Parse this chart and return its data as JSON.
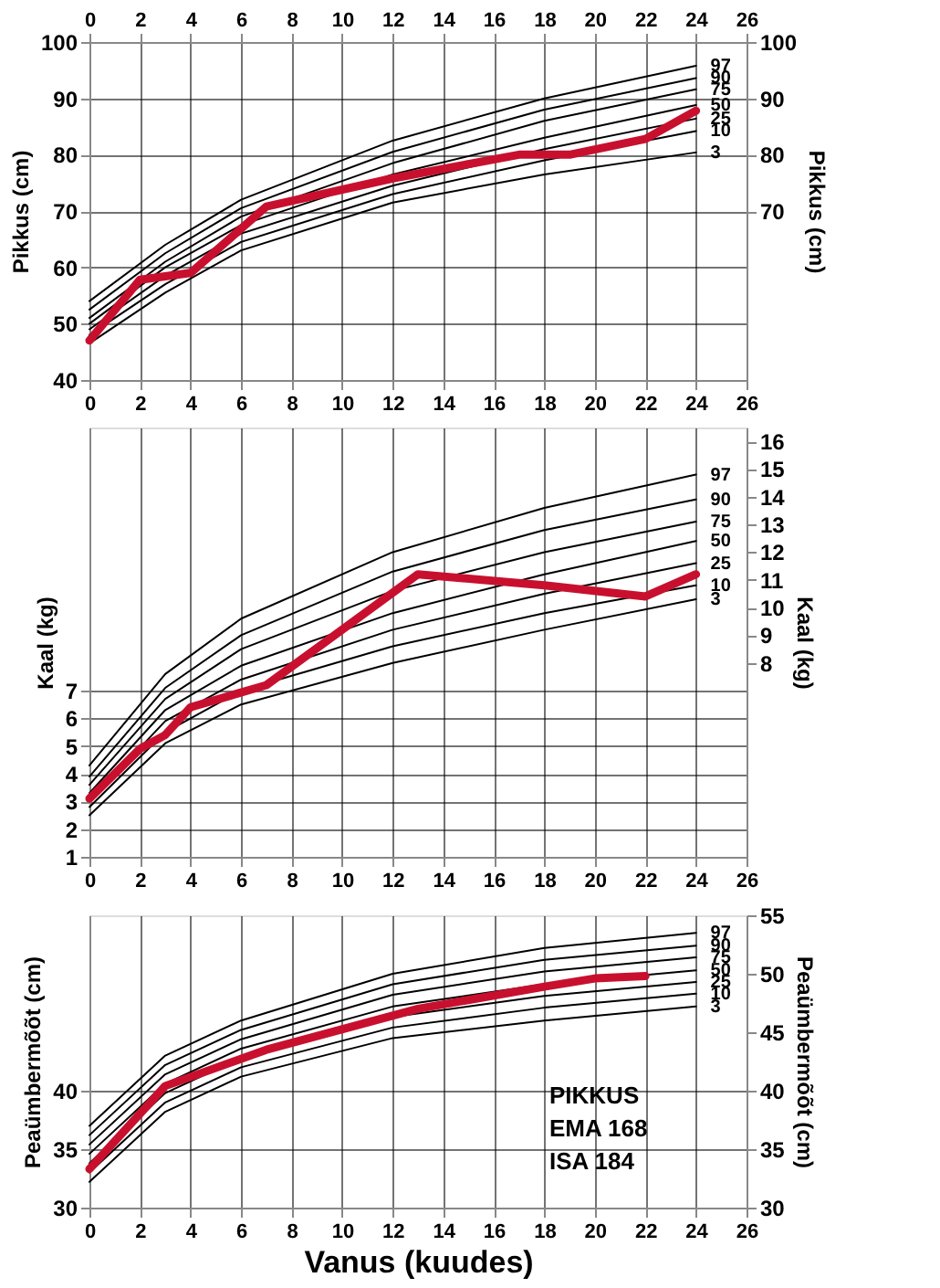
{
  "chart_data": [
    {
      "type": "line",
      "ylabel": "Pikkus (cm)",
      "y2label": "Pikkus (cm)",
      "xlim": [
        0,
        26
      ],
      "xticks": [
        0,
        2,
        4,
        6,
        8,
        10,
        12,
        14,
        16,
        18,
        20,
        22,
        24,
        26
      ],
      "x2lim": [
        0,
        26
      ],
      "x2ticks": [
        0,
        2,
        4,
        6,
        8,
        10,
        12,
        14,
        16,
        18,
        20,
        22,
        24,
        26
      ],
      "ylim": [
        40,
        100
      ],
      "yticks": [
        40,
        50,
        60,
        70,
        80,
        90,
        100
      ],
      "y2lim": [
        40,
        100
      ],
      "y2ticks": [
        70,
        80,
        90,
        100
      ],
      "grid": true,
      "marker": "none",
      "line_style": "solid",
      "x": [
        0,
        3,
        6,
        12,
        18,
        24
      ],
      "series": [
        {
          "name": "97",
          "color": "#000000",
          "values": [
            54,
            64,
            72,
            82.5,
            90,
            95.8
          ]
        },
        {
          "name": "90",
          "color": "#000000",
          "values": [
            52.5,
            62.5,
            70.5,
            80.5,
            88,
            93.6
          ]
        },
        {
          "name": "75",
          "color": "#000000",
          "values": [
            51,
            61,
            69,
            78.5,
            86,
            91.6
          ]
        },
        {
          "name": "50",
          "color": "#000000",
          "values": [
            50,
            60,
            67.5,
            76.5,
            83,
            88.8
          ]
        },
        {
          "name": "25",
          "color": "#000000",
          "values": [
            49,
            58.5,
            66,
            74.5,
            81,
            86.4
          ]
        },
        {
          "name": "10",
          "color": "#000000",
          "values": [
            48,
            57,
            64.5,
            73,
            79,
            84.2
          ]
        },
        {
          "name": "3",
          "color": "#000000",
          "values": [
            46.5,
            55.5,
            63,
            71.5,
            76.5,
            80.4
          ]
        },
        {
          "color": "#c8102e",
          "x": [
            0,
            2,
            4,
            7,
            12,
            17,
            19,
            22,
            24
          ],
          "values": [
            47,
            57.8,
            59,
            70.8,
            75.8,
            80,
            80,
            82.8,
            87.8
          ]
        }
      ]
    },
    {
      "type": "line",
      "ylabel": "Kaal (kg)",
      "y2label": "Kaal (kg)",
      "xlim": [
        0,
        26
      ],
      "xticks": [
        0,
        2,
        4,
        6,
        8,
        10,
        12,
        14,
        16,
        18,
        20,
        22,
        24,
        26
      ],
      "ylim": [
        1,
        16.5
      ],
      "yticks": [
        1,
        2,
        3,
        4,
        5,
        6,
        7
      ],
      "y2lim": [
        1,
        16.5
      ],
      "y2ticks": [
        8,
        9,
        10,
        11,
        12,
        13,
        14,
        15,
        16
      ],
      "grid": true,
      "marker": "none",
      "line_style": "solid",
      "x": [
        0,
        3,
        6,
        12,
        18,
        24
      ],
      "series": [
        {
          "name": "97",
          "color": "#000000",
          "values": [
            4.3,
            7.6,
            9.6,
            12.0,
            13.6,
            14.8
          ]
        },
        {
          "name": "90",
          "color": "#000000",
          "values": [
            3.9,
            7.1,
            9.0,
            11.3,
            12.8,
            13.9
          ]
        },
        {
          "name": "75",
          "color": "#000000",
          "values": [
            3.6,
            6.7,
            8.5,
            10.6,
            12.0,
            13.1
          ]
        },
        {
          "name": "50",
          "color": "#000000",
          "values": [
            3.3,
            6.3,
            7.9,
            9.8,
            11.2,
            12.4
          ]
        },
        {
          "name": "25",
          "color": "#000000",
          "values": [
            3.0,
            5.9,
            7.4,
            9.2,
            10.5,
            11.6
          ]
        },
        {
          "name": "10",
          "color": "#000000",
          "values": [
            2.8,
            5.5,
            7.0,
            8.6,
            9.8,
            10.8
          ]
        },
        {
          "name": "3",
          "color": "#000000",
          "values": [
            2.5,
            5.1,
            6.5,
            8.0,
            9.2,
            10.3
          ]
        },
        {
          "color": "#c8102e",
          "x": [
            0,
            2,
            3,
            4,
            7,
            13,
            18,
            22,
            24
          ],
          "values": [
            3.1,
            4.9,
            5.4,
            6.4,
            7.2,
            11.2,
            10.8,
            10.4,
            11.2
          ]
        }
      ]
    },
    {
      "type": "line",
      "ylabel": "Peaümbermõõt (cm)",
      "y2label": "Peaümbermõõt (cm)",
      "xlabel": "Vanus (kuudes)",
      "xlim": [
        0,
        26
      ],
      "xticks": [
        0,
        2,
        4,
        6,
        8,
        10,
        12,
        14,
        16,
        18,
        20,
        22,
        24,
        26
      ],
      "ylim": [
        30,
        55
      ],
      "yticks": [
        30,
        35,
        40
      ],
      "y2lim": [
        30,
        55
      ],
      "y2ticks": [
        30,
        35,
        40,
        45,
        50,
        55
      ],
      "grid": true,
      "marker": "none",
      "line_style": "solid",
      "x": [
        0,
        3,
        6,
        12,
        18,
        24
      ],
      "annotations": [
        "PIKKUS",
        "EMA 168",
        "ISA 184"
      ],
      "series": [
        {
          "name": "97",
          "color": "#000000",
          "values": [
            37,
            43,
            46,
            50,
            52.2,
            53.5
          ]
        },
        {
          "name": "90",
          "color": "#000000",
          "values": [
            36.2,
            42.2,
            45.2,
            49.1,
            51.2,
            52.4
          ]
        },
        {
          "name": "75",
          "color": "#000000",
          "values": [
            35.4,
            41.4,
            44.4,
            48.2,
            50.2,
            51.4
          ]
        },
        {
          "name": "50",
          "color": "#000000",
          "values": [
            34.6,
            40.6,
            43.6,
            47.2,
            49.1,
            50.3
          ]
        },
        {
          "name": "25",
          "color": "#000000",
          "values": [
            33.8,
            39.8,
            42.8,
            46.3,
            48.1,
            49.3
          ]
        },
        {
          "name": "10",
          "color": "#000000",
          "values": [
            33,
            39,
            42,
            45.4,
            47.1,
            48.3
          ]
        },
        {
          "name": "3",
          "color": "#000000",
          "values": [
            32.2,
            38.2,
            41.2,
            44.5,
            46,
            47.2
          ]
        },
        {
          "color": "#c8102e",
          "x": [
            0,
            3,
            7,
            13,
            18,
            20,
            22
          ],
          "values": [
            33.3,
            40.4,
            43.5,
            47.0,
            48.9,
            49.6,
            49.8
          ]
        }
      ]
    }
  ]
}
